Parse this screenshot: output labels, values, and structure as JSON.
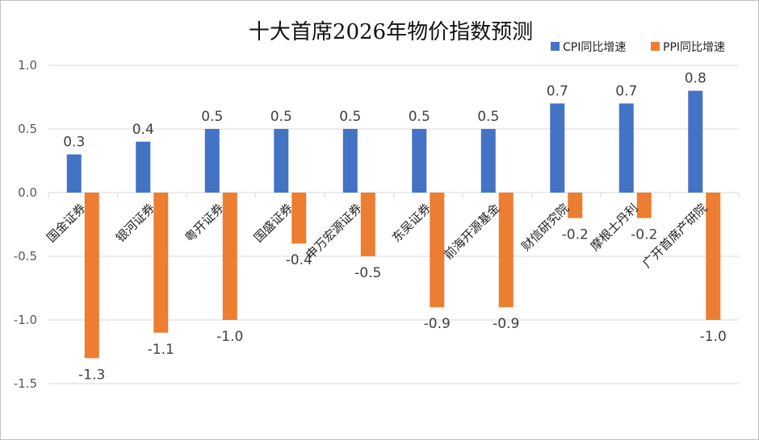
{
  "chart_data": {
    "type": "bar",
    "title": "十大首席2026年物价指数预测",
    "categories": [
      "国金证券",
      "银河证券",
      "粤开证券",
      "国盛证券",
      "申万宏源证券",
      "东吴证券",
      "前海开源基金",
      "财信研究院",
      "摩根士丹利",
      "广开首席产研院"
    ],
    "series": [
      {
        "name": "CPI同比增速",
        "color": "#4472C4",
        "values": [
          0.3,
          0.4,
          0.5,
          0.5,
          0.5,
          0.5,
          0.5,
          0.7,
          0.7,
          0.8
        ]
      },
      {
        "name": "PPI同比增速",
        "color": "#ED7D31",
        "values": [
          -1.3,
          -1.1,
          -1.0,
          -0.4,
          -0.5,
          -0.9,
          -0.9,
          -0.2,
          -0.2,
          -1.0
        ]
      }
    ],
    "ylim": [
      -1.5,
      1.0
    ],
    "yticks": [
      1.0,
      0.5,
      0.0,
      -0.5,
      -1.0,
      -1.5
    ],
    "ytick_labels": [
      "1.0",
      "0.5",
      "0.0",
      "-0.5",
      "-1.0",
      "-1.5"
    ],
    "grid": true,
    "legend": "top-right",
    "xlabel": "",
    "ylabel": ""
  }
}
